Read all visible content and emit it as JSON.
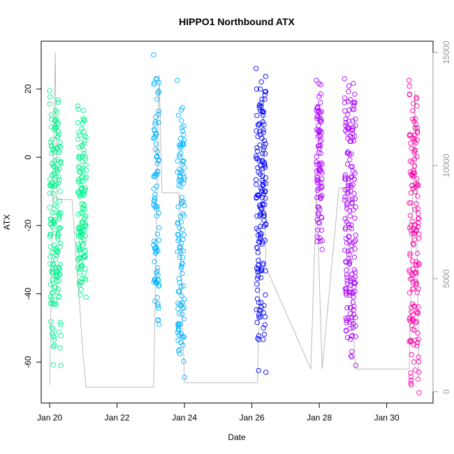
{
  "chart_data": {
    "type": "scatter",
    "title": "HIPPO1 Northbound ATX",
    "xlabel": "Date",
    "ylabel": "ATX",
    "x_unit": "days",
    "xlim": [
      "2009-01-19T18:00",
      "2009-01-31T09:00"
    ],
    "ylim": [
      -72,
      34
    ],
    "y2lim": [
      -500,
      15500
    ],
    "x_ticks": [
      {
        "label": "Jan 20",
        "value": "2009-01-20"
      },
      {
        "label": "Jan 22",
        "value": "2009-01-22"
      },
      {
        "label": "Jan 24",
        "value": "2009-01-24"
      },
      {
        "label": "Jan 26",
        "value": "2009-01-26"
      },
      {
        "label": "Jan 28",
        "value": "2009-01-28"
      },
      {
        "label": "Jan 30",
        "value": "2009-01-30"
      }
    ],
    "y_ticks": [
      -60,
      -40,
      -20,
      0,
      20
    ],
    "y2_ticks": [
      0,
      5000,
      10000,
      15000
    ],
    "grid": false,
    "series": [
      {
        "color": "#00F48C",
        "segments": [
          {
            "start": "2009-01-20T00:00",
            "end": "2009-01-20T08:00",
            "ymin": -61,
            "ymax": 19.5
          },
          {
            "start": "2009-01-20T20:00",
            "end": "2009-01-21T02:00",
            "ymin": -41,
            "ymax": 15
          }
        ]
      },
      {
        "color": "#00B2FF",
        "segments": [
          {
            "start": "2009-01-23T02:00",
            "end": "2009-01-23T06:00",
            "ymin": -49,
            "ymax": 30
          },
          {
            "start": "2009-01-23T19:00",
            "end": "2009-01-24T00:00",
            "ymin": -64.5,
            "ymax": 22.5
          }
        ]
      },
      {
        "color": "#0000FF",
        "segments": [
          {
            "start": "2009-01-26T03:00",
            "end": "2009-01-26T10:00",
            "ymin": -63,
            "ymax": 26
          }
        ]
      },
      {
        "color": "#AA00FF",
        "segments": [
          {
            "start": "2009-01-27T22:00",
            "end": "2009-01-28T02:00",
            "ymin": -27,
            "ymax": 22.5
          },
          {
            "start": "2009-01-28T18:00",
            "end": "2009-01-29T02:00",
            "ymin": -61,
            "ymax": 23
          }
        ]
      },
      {
        "color": "#FF00AA",
        "segments": [
          {
            "start": "2009-01-30T16:00",
            "end": "2009-01-30T23:00",
            "ymin": -69,
            "ymax": 22.5
          }
        ]
      }
    ],
    "altitude_trace": {
      "color": "#BBBBBB",
      "axis": "right",
      "points": [
        [
          "2009-01-20T00:00",
          300
        ],
        [
          "2009-01-20T04:00",
          15000
        ],
        [
          "2009-01-20T05:00",
          8500
        ],
        [
          "2009-01-20T07:00",
          8500
        ],
        [
          "2009-01-20T16:00",
          8500
        ],
        [
          "2009-01-21T00:00",
          1500
        ],
        [
          "2009-01-21T02:00",
          200
        ],
        [
          "2009-01-23T02:00",
          200
        ],
        [
          "2009-01-23T06:00",
          14000
        ],
        [
          "2009-01-23T08:00",
          8800
        ],
        [
          "2009-01-23T20:00",
          8800
        ],
        [
          "2009-01-24T00:00",
          400
        ],
        [
          "2009-01-26T04:00",
          400
        ],
        [
          "2009-01-26T08:00",
          13000
        ],
        [
          "2009-01-26T10:00",
          5500
        ],
        [
          "2009-01-27T18:00",
          1000
        ],
        [
          "2009-01-27T22:00",
          9000
        ],
        [
          "2009-01-28T02:00",
          1000
        ],
        [
          "2009-01-28T14:00",
          9000
        ],
        [
          "2009-01-28T18:00",
          9000
        ],
        [
          "2009-01-29T02:00",
          1000
        ],
        [
          "2009-01-30T16:00",
          1000
        ],
        [
          "2009-01-30T20:00",
          13300
        ],
        [
          "2009-01-30T23:00",
          600
        ]
      ]
    }
  }
}
